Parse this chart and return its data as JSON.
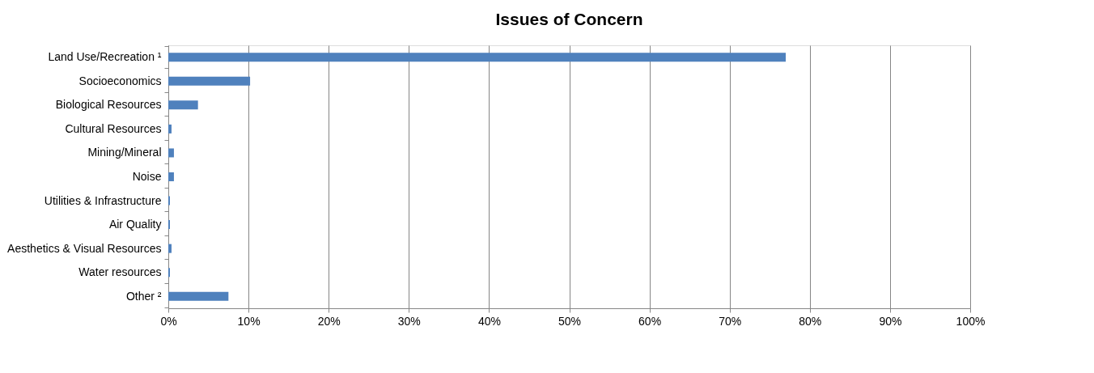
{
  "chart_data": {
    "type": "bar",
    "orientation": "horizontal",
    "title": "Issues of Concern",
    "categories": [
      "Land Use/Recreation ¹",
      "Socioeconomics",
      "Biological Resources",
      "Cultural Resources",
      "Mining/Mineral",
      "Noise",
      "Utilities & Infrastructure",
      "Air Quality",
      "Aesthetics & Visual Resources",
      "Water resources",
      "Other ²"
    ],
    "values": [
      77,
      10.2,
      3.7,
      0.4,
      0.7,
      0.7,
      0.2,
      0.2,
      0.4,
      0.2,
      7.5
    ],
    "color": "#4f81bd",
    "xlim": [
      0,
      100
    ],
    "xticks": [
      {
        "value": 0,
        "label": "0%"
      },
      {
        "value": 10,
        "label": "10%"
      },
      {
        "value": 20,
        "label": "20%"
      },
      {
        "value": 30,
        "label": "30%"
      },
      {
        "value": 40,
        "label": "40%"
      },
      {
        "value": 50,
        "label": "50%"
      },
      {
        "value": 60,
        "label": "60%"
      },
      {
        "value": 70,
        "label": "70%"
      },
      {
        "value": 80,
        "label": "80%"
      },
      {
        "value": 90,
        "label": "90%"
      },
      {
        "value": 100,
        "label": "100%"
      }
    ],
    "grid": "x"
  }
}
